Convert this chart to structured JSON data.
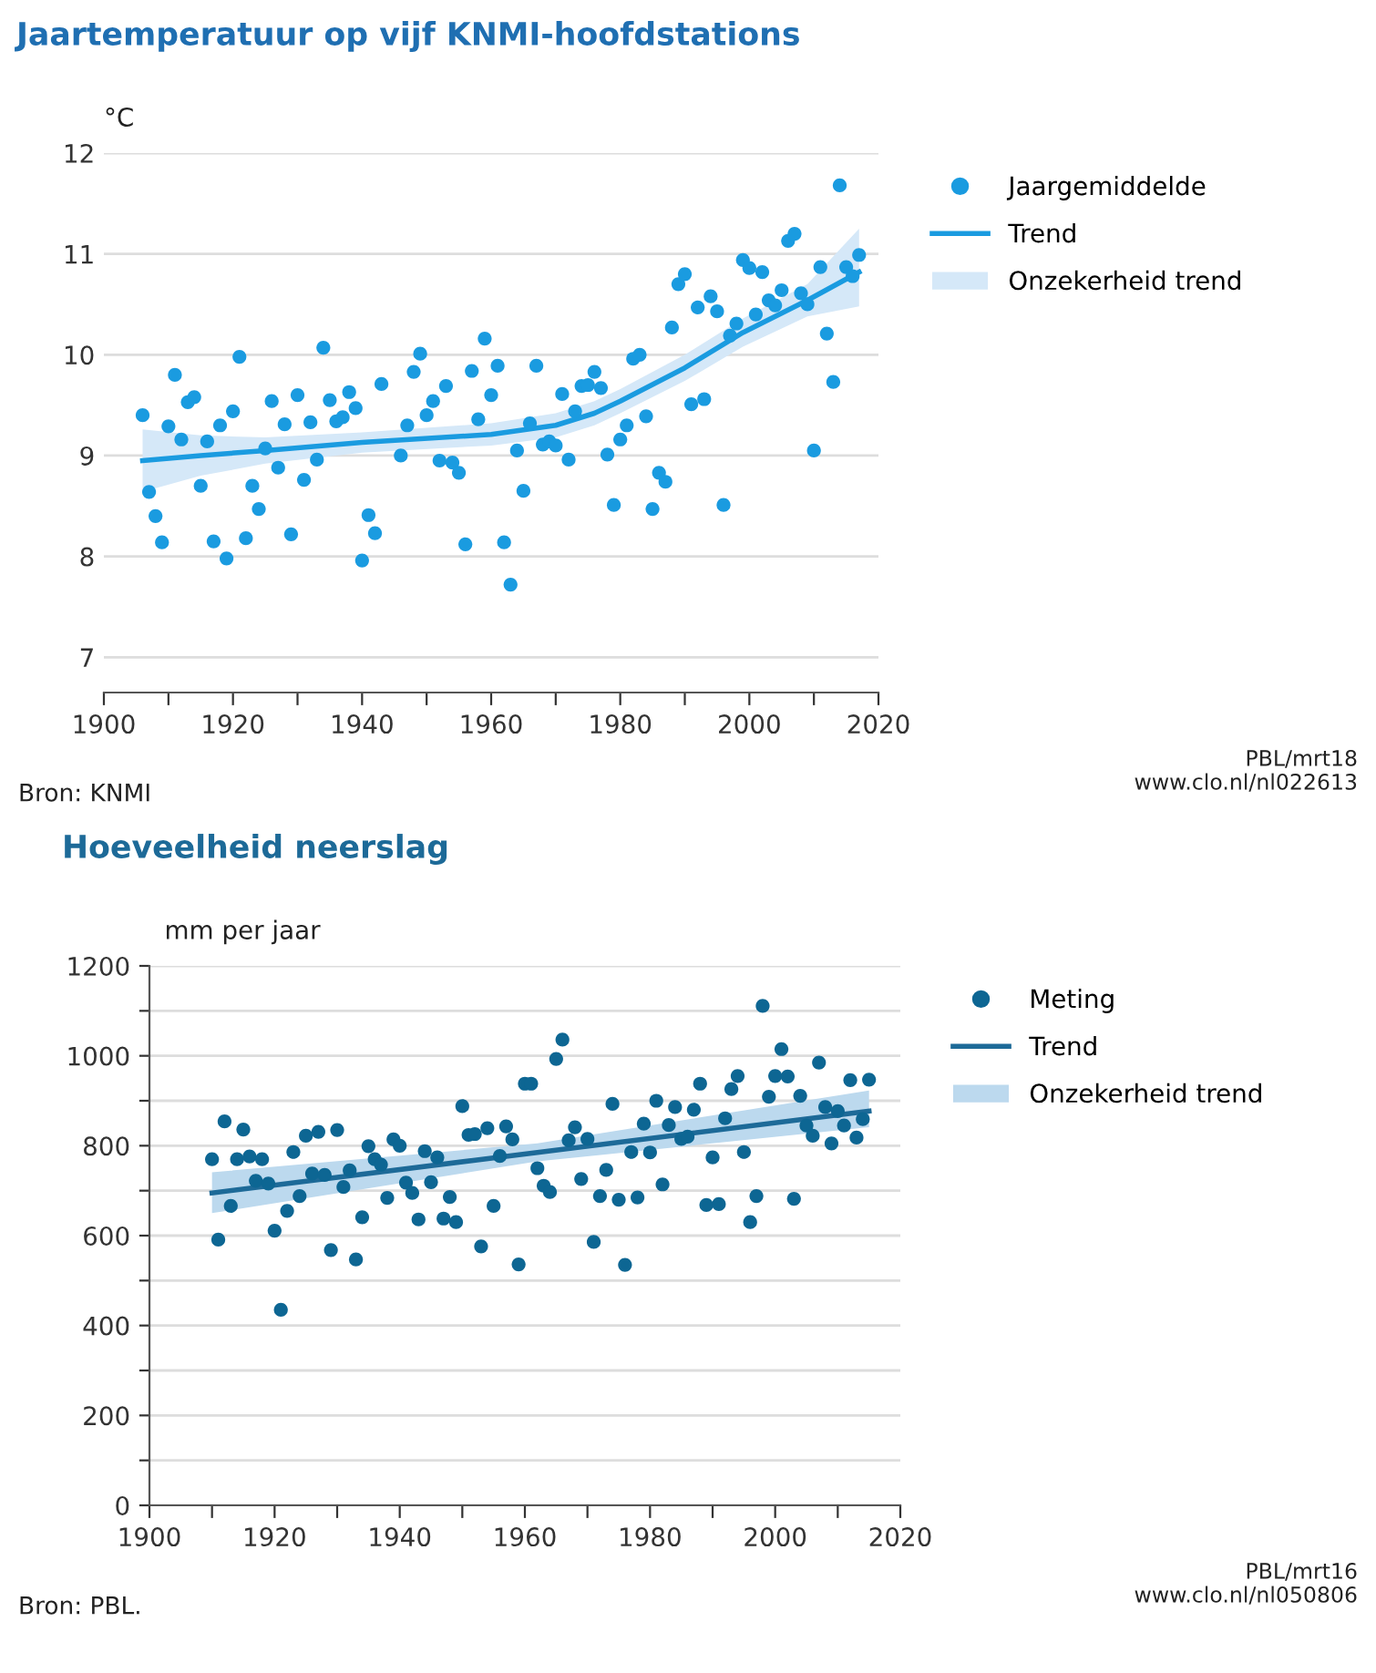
{
  "chart_data": [
    {
      "type": "scatter",
      "title": "Jaartemperatuur op vijf KNMI-hoofdstations",
      "ylabel": "°C",
      "xlim": [
        1900,
        2020
      ],
      "xticks": [
        1900,
        {
          "value": 1910,
          "label": null
        },
        1920,
        {
          "value": 1930,
          "label": null
        },
        1940,
        {
          "value": 1950,
          "label": null
        },
        1960,
        {
          "value": 1970,
          "label": null
        },
        1980,
        {
          "value": 1990,
          "label": null
        },
        2000,
        {
          "value": 2010,
          "label": null
        },
        2020
      ],
      "ylim": [
        6.65,
        12
      ],
      "yticks": [
        7,
        8,
        9,
        10,
        11,
        12
      ],
      "grid": "y",
      "legend": "right",
      "annotations": [
        "Bron: KNMI",
        "PBL/mrt18",
        "www.clo.nl/nl022613",
        "Onzekerheid trend"
      ],
      "series": [
        {
          "type": "line",
          "name": "Trend",
          "color": "#1a9be0",
          "x": [
            1906,
            1915,
            1925,
            1940,
            1960,
            1970,
            1976,
            1980,
            1990,
            1999,
            2009,
            2017
          ],
          "values": [
            8.95,
            9.0,
            9.05,
            9.13,
            9.21,
            9.3,
            9.42,
            9.54,
            9.87,
            10.22,
            10.54,
            10.82
          ],
          "lower": [
            8.64,
            8.8,
            8.92,
            9.03,
            9.1,
            9.18,
            9.3,
            9.42,
            9.74,
            10.08,
            10.38,
            10.48
          ],
          "upper": [
            9.26,
            9.2,
            9.18,
            9.23,
            9.32,
            9.42,
            9.54,
            9.66,
            10.0,
            10.36,
            10.7,
            11.25
          ]
        },
        {
          "type": "scatter",
          "name": "Jaargemiddelde",
          "color": "#1a9be0",
          "marker": "circle",
          "x": [
            1906,
            1907,
            1908,
            1909,
            1910,
            1911,
            1912,
            1913,
            1914,
            1915,
            1916,
            1917,
            1918,
            1919,
            1920,
            1921,
            1922,
            1923,
            1924,
            1925,
            1926,
            1927,
            1928,
            1929,
            1930,
            1931,
            1932,
            1933,
            1934,
            1935,
            1936,
            1937,
            1938,
            1939,
            1940,
            1941,
            1942,
            1943,
            1946,
            1947,
            1948,
            1949,
            1950,
            1951,
            1952,
            1953,
            1954,
            1955,
            1956,
            1957,
            1958,
            1959,
            1960,
            1961,
            1962,
            1963,
            1964,
            1965,
            1966,
            1967,
            1968,
            1969,
            1970,
            1971,
            1972,
            1973,
            1974,
            1975,
            1976,
            1977,
            1978,
            1979,
            1980,
            1981,
            1982,
            1983,
            1984,
            1985,
            1986,
            1987,
            1988,
            1989,
            1990,
            1991,
            1992,
            1993,
            1994,
            1995,
            1996,
            1997,
            1998,
            1999,
            2000,
            2001,
            2002,
            2003,
            2004,
            2005,
            2006,
            2007,
            2008,
            2009,
            2010,
            2011,
            2012,
            2013,
            2014,
            2015,
            2016,
            2017
          ],
          "values": [
            9.4,
            8.64,
            8.4,
            8.14,
            9.29,
            9.8,
            9.16,
            9.53,
            9.58,
            8.7,
            9.14,
            8.15,
            9.3,
            7.98,
            9.44,
            9.98,
            8.18,
            8.7,
            8.47,
            9.07,
            9.54,
            8.88,
            9.31,
            8.22,
            9.6,
            8.76,
            9.33,
            8.96,
            10.07,
            9.55,
            9.34,
            9.38,
            9.63,
            9.47,
            7.96,
            8.41,
            8.23,
            9.71,
            9.0,
            9.3,
            9.83,
            10.01,
            9.4,
            9.54,
            8.95,
            9.69,
            8.93,
            8.83,
            8.12,
            9.84,
            9.36,
            10.16,
            9.6,
            9.89,
            8.14,
            7.72,
            9.05,
            8.65,
            9.32,
            9.89,
            9.11,
            9.14,
            9.1,
            9.61,
            8.96,
            9.44,
            9.69,
            9.7,
            9.83,
            9.67,
            9.01,
            8.51,
            9.16,
            9.3,
            9.96,
            10.0,
            9.39,
            8.47,
            8.83,
            8.74,
            10.27,
            10.7,
            10.8,
            9.51,
            10.47,
            9.56,
            10.58,
            10.43,
            8.51,
            10.19,
            10.31,
            10.94,
            10.86,
            10.4,
            10.82,
            10.54,
            10.49,
            10.64,
            11.13,
            11.2,
            10.61,
            10.5,
            9.05,
            10.87,
            10.21,
            9.73,
            11.68,
            10.87,
            10.78,
            10.99
          ]
        }
      ]
    },
    {
      "type": "scatter",
      "title": "Hoeveelheid neerslag",
      "ylabel": "mm per jaar",
      "xlim": [
        1900,
        2020
      ],
      "xticks": [
        1900,
        {
          "value": 1910,
          "label": null
        },
        1920,
        {
          "value": 1930,
          "label": null
        },
        1940,
        {
          "value": 1950,
          "label": null
        },
        1960,
        {
          "value": 1970,
          "label": null
        },
        1980,
        {
          "value": 1990,
          "label": null
        },
        2000,
        {
          "value": 2010,
          "label": null
        },
        2020
      ],
      "ylim": [
        0,
        1200
      ],
      "yticks": [
        0,
        {
          "value": 100,
          "label": null
        },
        200,
        {
          "value": 300,
          "label": null
        },
        400,
        {
          "value": 500,
          "label": null
        },
        600,
        {
          "value": 700,
          "label": null
        },
        800,
        {
          "value": 900,
          "label": null
        },
        1000,
        {
          "value": 1100,
          "label": null
        },
        1200
      ],
      "grid": "y",
      "legend": "right",
      "annotations": [
        "Bron: PBL.",
        "PBL/mrt16",
        "www.clo.nl/nl050806",
        "Onzekerheid trend"
      ],
      "series": [
        {
          "type": "line",
          "name": "Trend",
          "color": "#1d6a98",
          "x": [
            1910,
            1962,
            2015
          ],
          "values": [
            695,
            785,
            877
          ],
          "lower": [
            650,
            765,
            841
          ],
          "upper": [
            741,
            805,
            923
          ]
        },
        {
          "type": "scatter",
          "name": "Meting",
          "color": "#0d6693",
          "marker": "circle",
          "x": [
            1910,
            1911,
            1912,
            1913,
            1914,
            1915,
            1916,
            1917,
            1918,
            1919,
            1920,
            1921,
            1922,
            1923,
            1924,
            1925,
            1926,
            1927,
            1928,
            1929,
            1930,
            1931,
            1932,
            1933,
            1934,
            1935,
            1936,
            1937,
            1938,
            1939,
            1940,
            1941,
            1942,
            1943,
            1944,
            1945,
            1946,
            1947,
            1948,
            1949,
            1950,
            1951,
            1952,
            1953,
            1954,
            1955,
            1956,
            1957,
            1958,
            1959,
            1960,
            1961,
            1962,
            1963,
            1964,
            1965,
            1966,
            1967,
            1968,
            1969,
            1970,
            1971,
            1972,
            1973,
            1974,
            1975,
            1976,
            1977,
            1978,
            1979,
            1980,
            1981,
            1982,
            1983,
            1984,
            1985,
            1986,
            1987,
            1988,
            1989,
            1990,
            1991,
            1992,
            1993,
            1994,
            1995,
            1996,
            1997,
            1998,
            1999,
            2000,
            2001,
            2002,
            2003,
            2004,
            2005,
            2006,
            2007,
            2008,
            2009,
            2010,
            2011,
            2012,
            2013,
            2014,
            2015
          ],
          "values": [
            770,
            591,
            854,
            666,
            770,
            836,
            776,
            722,
            770,
            716,
            611,
            435,
            655,
            786,
            688,
            822,
            738,
            831,
            735,
            568,
            835,
            708,
            745,
            547,
            641,
            799,
            770,
            758,
            684,
            814,
            800,
            718,
            695,
            636,
            788,
            719,
            774,
            638,
            686,
            630,
            888,
            824,
            826,
            576,
            839,
            666,
            777,
            843,
            814,
            536,
            938,
            938,
            750,
            711,
            697,
            993,
            1036,
            812,
            841,
            726,
            815,
            586,
            688,
            746,
            893,
            680,
            535,
            786,
            685,
            849,
            785,
            900,
            714,
            846,
            886,
            815,
            820,
            880,
            938,
            668,
            774,
            670,
            861,
            926,
            955,
            786,
            630,
            688,
            1111,
            909,
            955,
            1015,
            954,
            682,
            911,
            845,
            822,
            985,
            886,
            805,
            877,
            845,
            946,
            818,
            859,
            947
          ]
        }
      ]
    }
  ]
}
